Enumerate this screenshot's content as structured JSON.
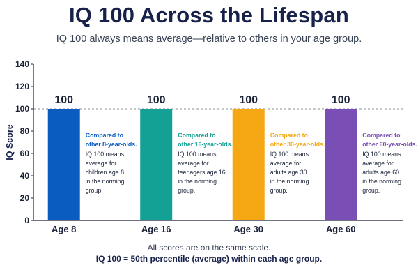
{
  "header": {
    "title": "IQ 100 Across the Lifespan",
    "subtitle": "IQ 100 always means average—relative to others in your age group."
  },
  "footer": {
    "line1": "All scores are on the same scale.",
    "line2": "IQ 100 = 50th percentile (average) within each age group."
  },
  "chart_data": {
    "type": "bar",
    "title": "IQ 100 Across the Lifespan",
    "subtitle": "IQ 100 always means average—relative to others in your age group.",
    "xlabel": "",
    "ylabel": "IQ Score",
    "ylim": [
      0,
      140
    ],
    "yticks": [
      0,
      20,
      40,
      60,
      80,
      100,
      120,
      140
    ],
    "reference_line": 100,
    "grid": false,
    "categories": [
      "Age 8",
      "Age 16",
      "Age 30",
      "Age 60"
    ],
    "values": [
      100,
      100,
      100,
      100
    ],
    "data_labels": [
      "100",
      "100",
      "100",
      "100"
    ],
    "colors": [
      "#0a5cc0",
      "#13a095",
      "#f5a813",
      "#7a4fb5"
    ],
    "annotations": [
      {
        "heading": [
          "Compared to",
          "other 8-year-olds."
        ],
        "body": [
          "IQ 100 means",
          "average for",
          "children age 8",
          "in the norming",
          "group."
        ]
      },
      {
        "heading": [
          "Compared to",
          "other 16-year-olds."
        ],
        "body": [
          "IQ 100 means",
          "average for",
          "teenagers age 16",
          "in the norming",
          "group."
        ]
      },
      {
        "heading": [
          "Compared to",
          "other 30-year-olds."
        ],
        "body": [
          "IQ 100 means",
          "average for",
          "adults age 30",
          "in the norming",
          "group."
        ]
      },
      {
        "heading": [
          "Compared to",
          "other 60-year-olds."
        ],
        "body": [
          "IQ 100 means",
          "average for",
          "adults age 60",
          "in the norming",
          "group."
        ]
      }
    ]
  }
}
